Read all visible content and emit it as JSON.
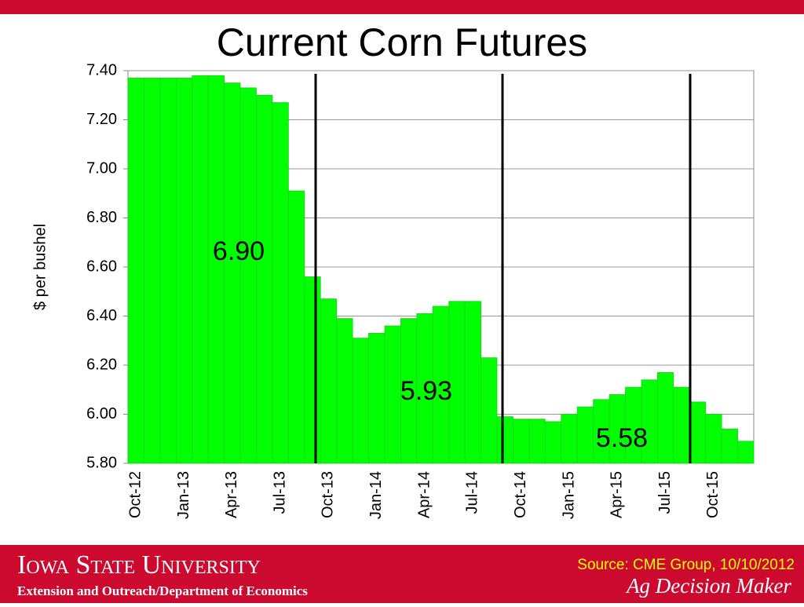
{
  "header": {
    "university": "Iowa State University",
    "department": "Extension and Outreach/Department of Economics",
    "source": "Source: CME Group, 10/10/2012",
    "brand": "Ag Decision Maker"
  },
  "chart_data": {
    "type": "bar",
    "title": "Current Corn Futures",
    "y_label": "$ per bushel",
    "color": "#00ff00",
    "categories": [
      "Oct-12",
      null,
      null,
      "Jan-13",
      null,
      null,
      "Apr-13",
      null,
      null,
      "Jul-13",
      null,
      null,
      "Oct-13",
      null,
      null,
      "Jan-14",
      null,
      null,
      "Apr-14",
      null,
      null,
      "Jul-14",
      null,
      null,
      "Oct-14",
      null,
      null,
      "Jan-15",
      null,
      null,
      "Apr-15",
      null,
      null,
      "Jul-15",
      null,
      null,
      "Oct-15",
      null,
      null
    ],
    "values": [
      7.37,
      7.37,
      7.37,
      7.37,
      7.38,
      7.38,
      7.35,
      7.33,
      7.3,
      7.27,
      6.91,
      6.56,
      6.47,
      6.39,
      6.31,
      6.33,
      6.36,
      6.39,
      6.41,
      6.44,
      6.46,
      6.46,
      6.23,
      5.99,
      5.98,
      5.98,
      5.97,
      6.0,
      6.03,
      6.06,
      6.08,
      6.11,
      6.14,
      6.17,
      6.11,
      6.05,
      6.0,
      5.94,
      5.89
    ],
    "ylim": [
      5.8,
      7.4
    ],
    "yticks": [
      {
        "value": 5.8,
        "label": "5.80"
      },
      {
        "value": 6,
        "label": "6.00"
      },
      {
        "value": 6.2,
        "label": "6.20"
      },
      {
        "value": 6.4,
        "label": "6.40"
      },
      {
        "value": 6.6,
        "label": "6.60"
      },
      {
        "value": 6.8,
        "label": "6.80"
      },
      {
        "value": 7,
        "label": "7.00"
      },
      {
        "value": 7.2,
        "label": "7.20"
      },
      {
        "value": 7.4,
        "label": "7.40"
      }
    ],
    "grid": true,
    "annotations": [
      "6.90",
      "5.93",
      "5.58"
    ]
  }
}
